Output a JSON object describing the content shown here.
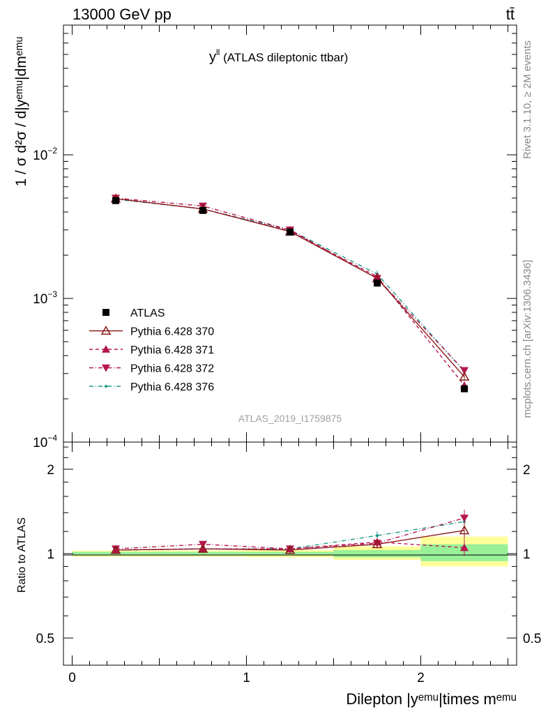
{
  "header": {
    "energy_label": "13000 GeV pp",
    "process_label": "tt̄"
  },
  "side_labels": {
    "rivet": "Rivet 3.1.10, ≥ 2M events",
    "mcplots": "mcplots.cern.ch [arXiv:1306.3436]"
  },
  "chart_data": [
    {
      "type": "scatter",
      "panel": "main",
      "title_main": "y",
      "title_sup": "ll",
      "title_rest": " (ATLAS dileptonic ttbar)",
      "watermark": "ATLAS_2019_I1759875",
      "ylabel": "1 / σ d²σ / d|yᵉᵐᵘ|dmᵉᵐᵘ",
      "yscale": "log",
      "ylim": [
        0.0001,
        0.08
      ],
      "xlim": [
        -0.05,
        2.55
      ],
      "y_ticks": [
        {
          "label": "10",
          "exp": "−4"
        },
        {
          "label": "10",
          "exp": "−3"
        },
        {
          "label": "10",
          "exp": "−2"
        }
      ],
      "x": [
        0.25,
        0.75,
        1.25,
        1.75,
        2.25
      ],
      "x_bin_edges": [
        0,
        0.5,
        1.0,
        1.5,
        2.0,
        2.5
      ],
      "series": [
        {
          "name": "ATLAS",
          "color": "#000000",
          "marker": "square",
          "line": "none",
          "values": [
            0.0048,
            0.0041,
            0.0029,
            0.00128,
            0.000235
          ]
        },
        {
          "name": "Pythia 6.428 370",
          "color": "#8b1a1a",
          "marker": "triangle-up-open",
          "line": "solid",
          "values": [
            0.00495,
            0.0042,
            0.00292,
            0.00138,
            0.000285
          ]
        },
        {
          "name": "Pythia 6.428 371",
          "color": "#b5164f",
          "marker": "triangle-up",
          "line": "dashed",
          "values": [
            0.00495,
            0.0042,
            0.00295,
            0.00142,
            0.000248
          ]
        },
        {
          "name": "Pythia 6.428 372",
          "color": "#b5164f",
          "marker": "triangle-down",
          "line": "dashdot",
          "values": [
            0.005,
            0.0044,
            0.003,
            0.00138,
            0.000315
          ]
        },
        {
          "name": "Pythia 6.428 376",
          "color": "#1a9a8a",
          "marker": "dot",
          "line": "dashdot",
          "values": [
            0.0049,
            0.0042,
            0.003,
            0.00148,
            0.00031
          ]
        }
      ]
    },
    {
      "type": "scatter",
      "panel": "ratio",
      "ylabel": "Ratio to ATLAS",
      "xlabel": "Dilepton |yᵉᵐᵘ|times mᵉᵐᵘ",
      "ylim": [
        0.4,
        2.5
      ],
      "xlim": [
        -0.05,
        2.55
      ],
      "x_tick_labels": [
        "0",
        "1",
        "2"
      ],
      "y_tick_labels": [
        "0.5",
        "1",
        "2"
      ],
      "bands": [
        {
          "x0": 0.0,
          "x1": 0.5,
          "yellow": [
            0.975,
            1.025
          ],
          "green": [
            0.985,
            1.015
          ]
        },
        {
          "x0": 0.5,
          "x1": 1.0,
          "yellow": [
            0.975,
            1.025
          ],
          "green": [
            0.985,
            1.015
          ]
        },
        {
          "x0": 1.0,
          "x1": 1.5,
          "yellow": [
            0.97,
            1.03
          ],
          "green": [
            0.985,
            1.015
          ]
        },
        {
          "x0": 1.5,
          "x1": 2.0,
          "yellow": [
            0.95,
            1.06
          ],
          "green": [
            0.97,
            1.03
          ]
        },
        {
          "x0": 2.0,
          "x1": 2.5,
          "yellow": [
            0.9,
            1.15
          ],
          "green": [
            0.94,
            1.08
          ]
        }
      ],
      "x": [
        0.25,
        0.75,
        1.25,
        1.75,
        2.25
      ],
      "series": [
        {
          "name": "Pythia 6.428 370",
          "values": [
            1.03,
            1.04,
            1.03,
            1.08,
            1.21
          ]
        },
        {
          "name": "Pythia 6.428 371",
          "values": [
            1.03,
            1.04,
            1.04,
            1.1,
            1.05
          ]
        },
        {
          "name": "Pythia 6.428 372",
          "values": [
            1.04,
            1.08,
            1.04,
            1.09,
            1.34
          ]
        },
        {
          "name": "Pythia 6.428 376",
          "values": [
            1.03,
            1.04,
            1.04,
            1.16,
            1.3
          ]
        }
      ]
    }
  ]
}
